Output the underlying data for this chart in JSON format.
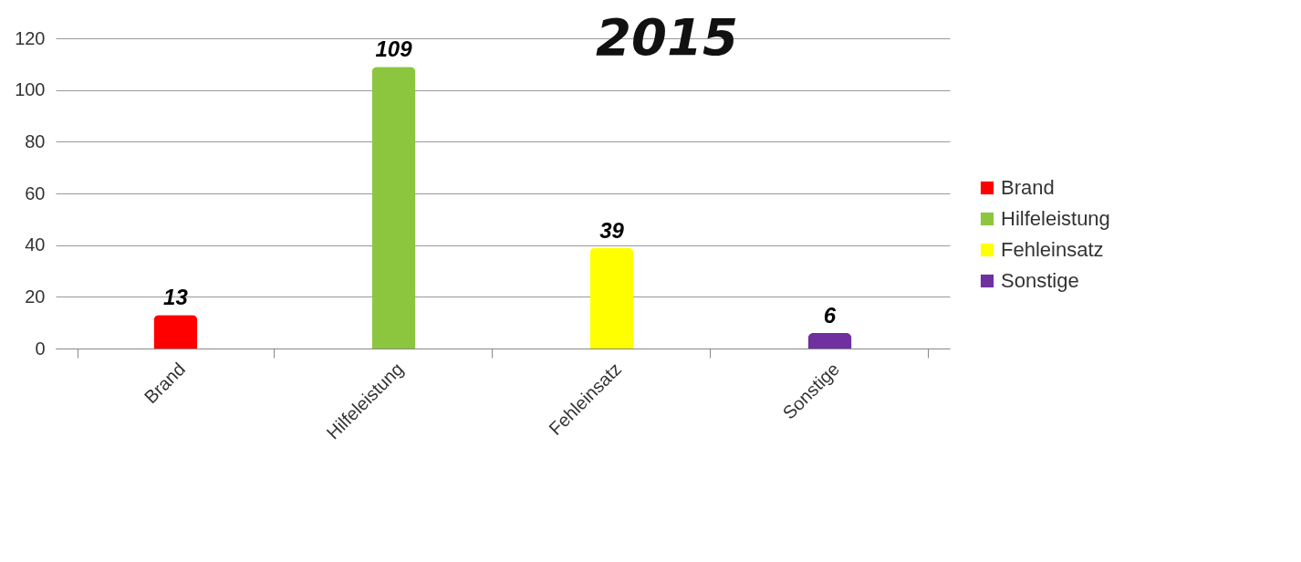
{
  "chart_data": {
    "type": "bar",
    "title": "2015",
    "categories": [
      "Brand",
      "Hilfeleistung",
      "Fehleinsatz",
      "Sonstige"
    ],
    "series": [
      {
        "name": "Brand",
        "color": "#ff0000",
        "values": [
          13,
          null,
          null,
          null
        ]
      },
      {
        "name": "Hilfeleistung",
        "color": "#8cc63f",
        "values": [
          null,
          109,
          null,
          null
        ]
      },
      {
        "name": "Fehleinsatz",
        "color": "#ffff00",
        "values": [
          null,
          null,
          39,
          null
        ]
      },
      {
        "name": "Sonstige",
        "color": "#7030a0",
        "values": [
          null,
          null,
          null,
          6
        ]
      }
    ],
    "ylim": [
      0,
      120
    ],
    "yticks": [
      0,
      20,
      40,
      60,
      80,
      100,
      120
    ],
    "grid": "y",
    "legend": "right",
    "data_labels": true
  }
}
